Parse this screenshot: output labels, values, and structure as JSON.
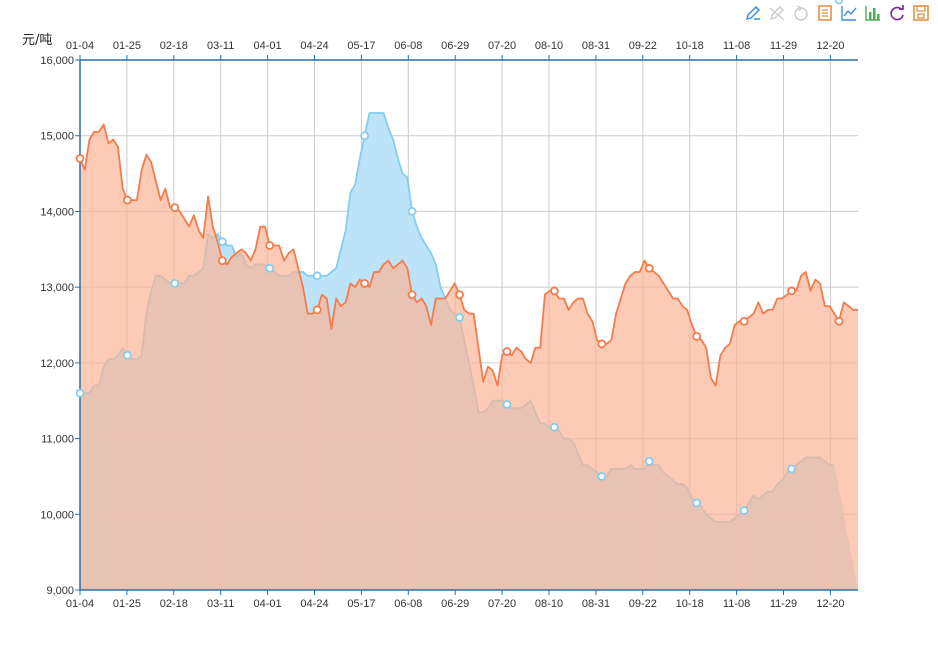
{
  "toolbar": {
    "buttons": [
      {
        "name": "zoom-icon",
        "color": "#3a8ee6"
      },
      {
        "name": "zoom-reset-icon",
        "color": "#cccccc"
      },
      {
        "name": "restore-icon",
        "color": "#cccccc"
      },
      {
        "name": "data-view-icon",
        "color": "#e08c3a"
      },
      {
        "name": "line-chart-icon",
        "color": "#3a8ee6"
      },
      {
        "name": "bar-chart-icon",
        "color": "#4caf50"
      },
      {
        "name": "refresh-icon",
        "color": "#7b1fa2"
      },
      {
        "name": "save-image-icon",
        "color": "#e08c3a"
      }
    ]
  },
  "chart_data": {
    "type": "area",
    "ylabel": "元/吨",
    "ylim": [
      9000,
      16000
    ],
    "yticks": [
      "9,000",
      "10,000",
      "11,000",
      "12,000",
      "13,000",
      "14,000",
      "15,000",
      "16,000"
    ],
    "xticks": [
      "01-04",
      "01-25",
      "02-18",
      "03-11",
      "04-01",
      "04-24",
      "05-17",
      "06-08",
      "06-29",
      "07-20",
      "08-10",
      "08-31",
      "09-22",
      "10-18",
      "11-08",
      "11-29",
      "12-20"
    ],
    "grid": true,
    "colors": {
      "orange": "#f47c4c",
      "orange_fill": "#fbb395",
      "blue": "#85cdee",
      "blue_fill": "#b9e2f8",
      "axis": "#2a6fa6"
    },
    "series": [
      {
        "color": "orange",
        "values": [
          14700,
          14550,
          14950,
          15050,
          15050,
          15150,
          14900,
          14950,
          14850,
          14300,
          14150,
          14150,
          14150,
          14550,
          14750,
          14650,
          14400,
          14150,
          14300,
          14050,
          14050,
          14000,
          13900,
          13800,
          13950,
          13750,
          13650,
          14200,
          13800,
          13600,
          13350,
          13300,
          13400,
          13450,
          13500,
          13450,
          13350,
          13500,
          13800,
          13800,
          13550,
          13550,
          13550,
          13350,
          13450,
          13500,
          13250,
          13000,
          12650,
          12650,
          12700,
          12900,
          12850,
          12450,
          12850,
          12750,
          12800,
          13050,
          13000,
          13100,
          13050,
          13000,
          13200,
          13200,
          13300,
          13350,
          13250,
          13300,
          13350,
          13250,
          12900,
          12800,
          12850,
          12750,
          12500,
          12850,
          12850,
          12850,
          12950,
          13050,
          12900,
          12700,
          12650,
          12650,
          12200,
          11750,
          11950,
          11900,
          11700,
          12100,
          12150,
          12100,
          12200,
          12150,
          12050,
          12000,
          12200,
          12200,
          12900,
          12950,
          12950,
          12850,
          12850,
          12700,
          12800,
          12850,
          12850,
          12650,
          12550,
          12300,
          12250,
          12250,
          12300,
          12650,
          12850,
          13050,
          13150,
          13200,
          13200,
          13350,
          13250,
          13200,
          13150,
          13050,
          12950,
          12850,
          12850,
          12750,
          12700,
          12500,
          12350,
          12300,
          12200,
          11800,
          11700,
          12100,
          12200,
          12250,
          12500,
          12550,
          12550,
          12600,
          12650,
          12800,
          12650,
          12700,
          12700,
          12850,
          12850,
          12900,
          12950,
          12950,
          13150,
          13200,
          12950,
          13100,
          13050,
          12750,
          12750,
          12650,
          12550,
          12800,
          12750,
          12700,
          12700
        ]
      },
      {
        "color": "blue",
        "values": [
          11600,
          11600,
          11600,
          11700,
          11700,
          11950,
          12050,
          12050,
          12100,
          12200,
          12100,
          12050,
          12050,
          12100,
          12650,
          12950,
          13150,
          13150,
          13100,
          13050,
          13050,
          13050,
          13050,
          13150,
          13150,
          13200,
          13250,
          13700,
          13650,
          13700,
          13600,
          13550,
          13550,
          13400,
          13450,
          13300,
          13250,
          13300,
          13300,
          13300,
          13250,
          13200,
          13150,
          13150,
          13150,
          13200,
          13200,
          13200,
          13150,
          13150,
          13150,
          13150,
          13150,
          13200,
          13250,
          13500,
          13750,
          14250,
          14350,
          14700,
          15000,
          15300,
          15300,
          15300,
          15300,
          15100,
          14950,
          14700,
          14500,
          14450,
          14000,
          13800,
          13650,
          13550,
          13450,
          13300,
          13000,
          12850,
          12700,
          12650,
          12600,
          12300,
          12000,
          11700,
          11350,
          11350,
          11400,
          11500,
          11500,
          11500,
          11450,
          11400,
          11400,
          11400,
          11450,
          11500,
          11350,
          11200,
          11200,
          11150,
          11150,
          11100,
          11000,
          11000,
          10950,
          10800,
          10650,
          10650,
          10600,
          10550,
          10500,
          10500,
          10600,
          10600,
          10600,
          10600,
          10650,
          10600,
          10600,
          10600,
          10700,
          10650,
          10650,
          10550,
          10500,
          10450,
          10400,
          10400,
          10350,
          10200,
          10150,
          10100,
          10000,
          9950,
          9900,
          9900,
          9900,
          9900,
          9950,
          10000,
          10050,
          10150,
          10250,
          10200,
          10250,
          10300,
          10300,
          10400,
          10450,
          10550,
          10600,
          10650,
          10700,
          10750,
          10750,
          10750,
          10750,
          10700,
          10650,
          10650
        ]
      }
    ]
  }
}
